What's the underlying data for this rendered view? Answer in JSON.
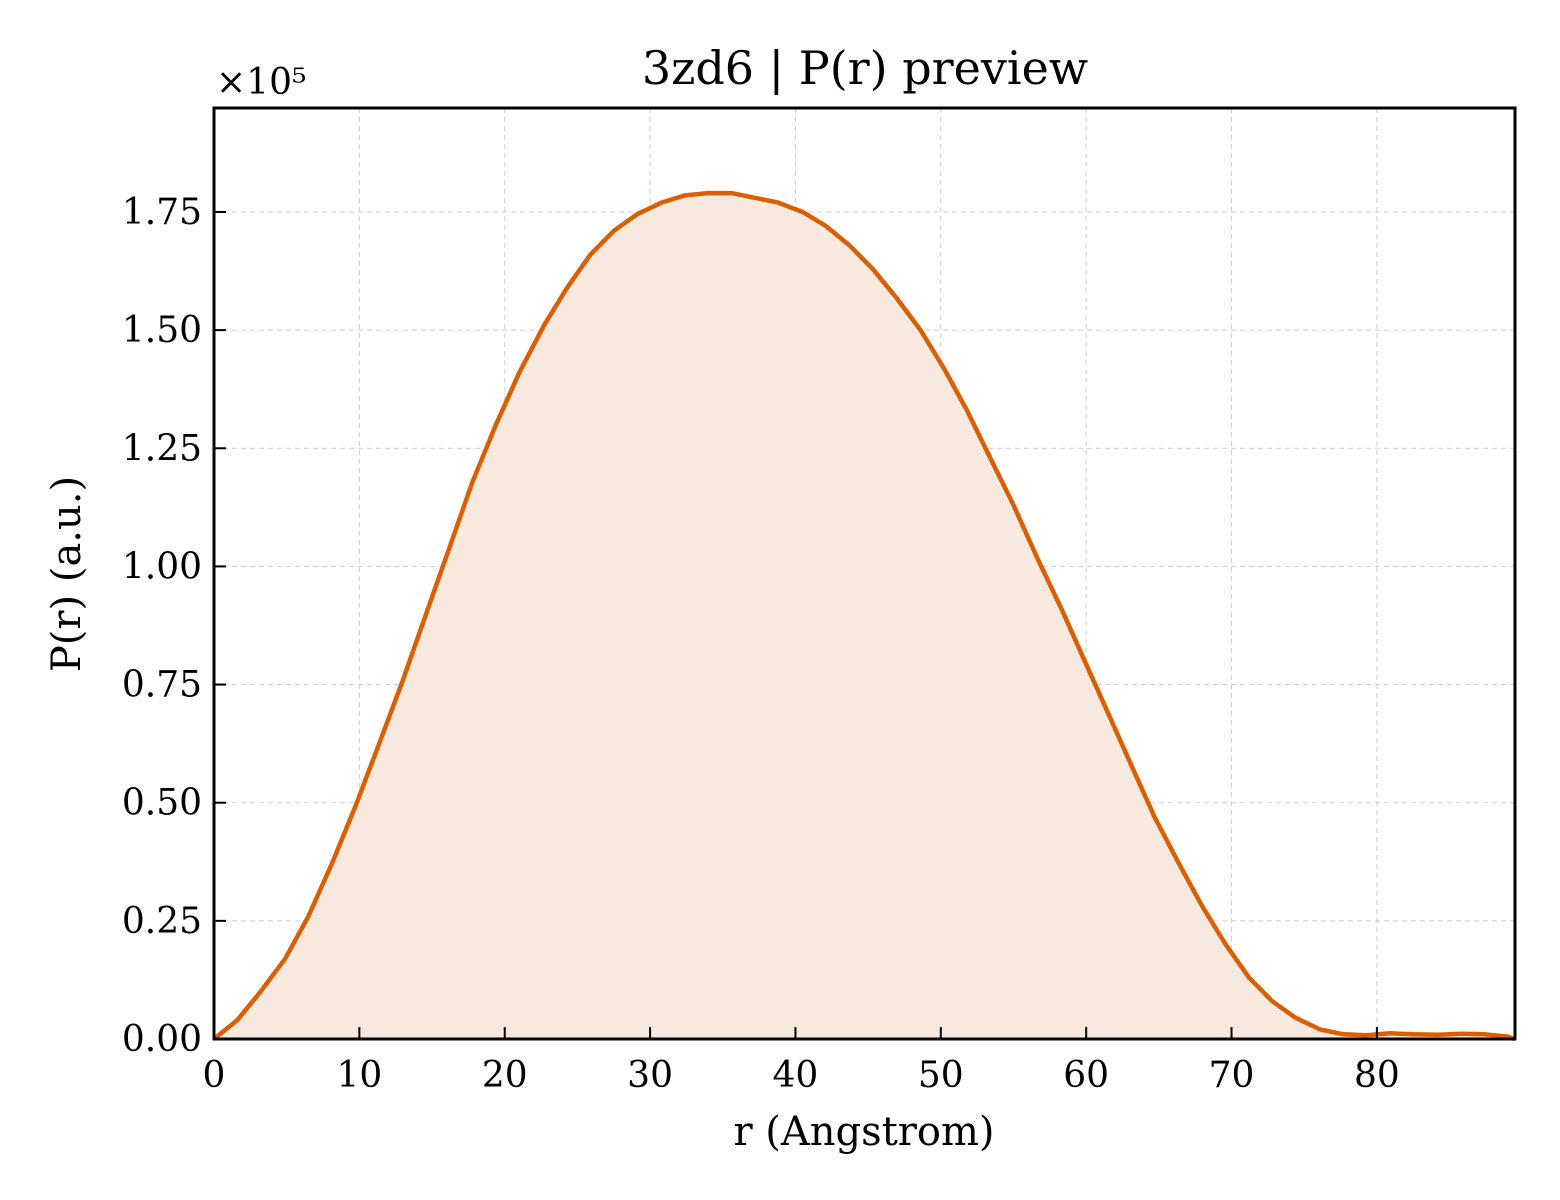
{
  "chart_data": {
    "type": "area",
    "title": "3zd6 | P(r) preview",
    "xlabel": "r (Angstrom)",
    "ylabel": "P(r) (a.u.)",
    "y_multiplier_label": "×10⁵",
    "xlim": [
      0,
      89.5
    ],
    "ylim": [
      0,
      1.97
    ],
    "grid": true,
    "x_ticks": [
      0,
      10,
      20,
      30,
      40,
      50,
      60,
      70,
      80
    ],
    "y_ticks": [
      0.0,
      0.25,
      0.5,
      0.75,
      1.0,
      1.25,
      1.5,
      1.75
    ],
    "x_tick_labels": [
      "0",
      "10",
      "20",
      "30",
      "40",
      "50",
      "60",
      "70",
      "80"
    ],
    "y_tick_labels": [
      "0.00",
      "0.25",
      "0.50",
      "0.75",
      "1.00",
      "1.25",
      "1.50",
      "1.75"
    ],
    "series": [
      {
        "color": "#d95f02",
        "fill_color": "#f8e9de",
        "x": [
          0,
          1.6,
          3.2,
          4.9,
          6.5,
          8.1,
          9.7,
          11.3,
          13.0,
          14.6,
          16.2,
          17.8,
          19.4,
          21.0,
          22.7,
          24.3,
          25.9,
          27.5,
          29.1,
          30.8,
          32.4,
          34.0,
          35.6,
          37.2,
          38.8,
          40.5,
          42.1,
          43.7,
          45.3,
          46.9,
          48.6,
          50.2,
          51.8,
          53.4,
          55.0,
          56.6,
          58.3,
          59.9,
          61.5,
          63.1,
          64.7,
          66.4,
          68.0,
          69.6,
          71.2,
          72.8,
          74.4,
          76.1,
          77.7,
          79.3,
          80.9,
          82.5,
          84.2,
          85.8,
          87.4,
          89.0,
          89.5
        ],
        "y": [
          0.0,
          0.04,
          0.1,
          0.17,
          0.26,
          0.37,
          0.49,
          0.62,
          0.76,
          0.9,
          1.04,
          1.18,
          1.3,
          1.41,
          1.51,
          1.59,
          1.66,
          1.71,
          1.745,
          1.77,
          1.785,
          1.79,
          1.79,
          1.78,
          1.77,
          1.75,
          1.72,
          1.68,
          1.63,
          1.57,
          1.5,
          1.42,
          1.33,
          1.23,
          1.13,
          1.02,
          0.91,
          0.8,
          0.69,
          0.58,
          0.47,
          0.37,
          0.28,
          0.2,
          0.13,
          0.08,
          0.045,
          0.02,
          0.01,
          0.008,
          0.012,
          0.01,
          0.009,
          0.011,
          0.01,
          0.005,
          0.0
        ]
      }
    ]
  }
}
